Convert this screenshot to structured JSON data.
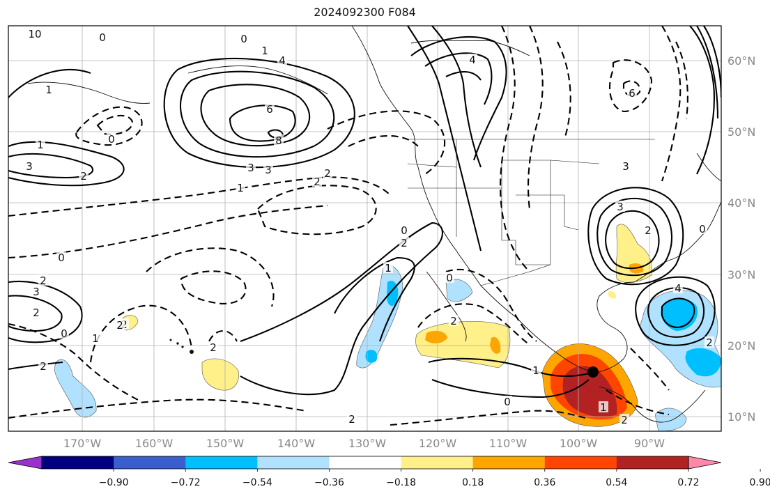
{
  "title": "2024092300 F084",
  "map": {
    "lon_labels": [
      "170°W",
      "160°W",
      "150°W",
      "140°W",
      "130°W",
      "120°W",
      "110°W",
      "100°W",
      "90°W"
    ],
    "lat_labels": [
      "60°N",
      "50°N",
      "40°N",
      "30°N",
      "20°N",
      "10°N"
    ],
    "contour_labels": [
      "10",
      "0",
      "1",
      "0",
      "4",
      "6",
      "8",
      "3",
      "3",
      "2",
      "1",
      "0",
      "2",
      "1",
      "3",
      "1",
      "0",
      "2",
      "3",
      "2",
      "0",
      "2",
      "1",
      "2",
      "2",
      "2",
      "1",
      "0",
      "2",
      "2",
      "1",
      "0",
      "2",
      "4",
      "6",
      "3",
      "3",
      "2",
      "4",
      "0",
      "2",
      "0",
      "1",
      "2",
      "2"
    ],
    "colors": {
      "contour_line": "#000000",
      "coastline": "#000000",
      "grid": "#b0b0b0"
    }
  },
  "colorbar": {
    "ticks": [
      "−0.90",
      "−0.72",
      "−0.54",
      "−0.36",
      "−0.18",
      "0.18",
      "0.36",
      "0.54",
      "0.72",
      "0.90"
    ],
    "colors": [
      "#9932cc",
      "#000080",
      "#3a5fcd",
      "#00bfff",
      "#b0e2ff",
      "#ffffff",
      "#fff08a",
      "#ffa500",
      "#ff4500",
      "#b22222",
      "#ff88aa"
    ]
  }
}
